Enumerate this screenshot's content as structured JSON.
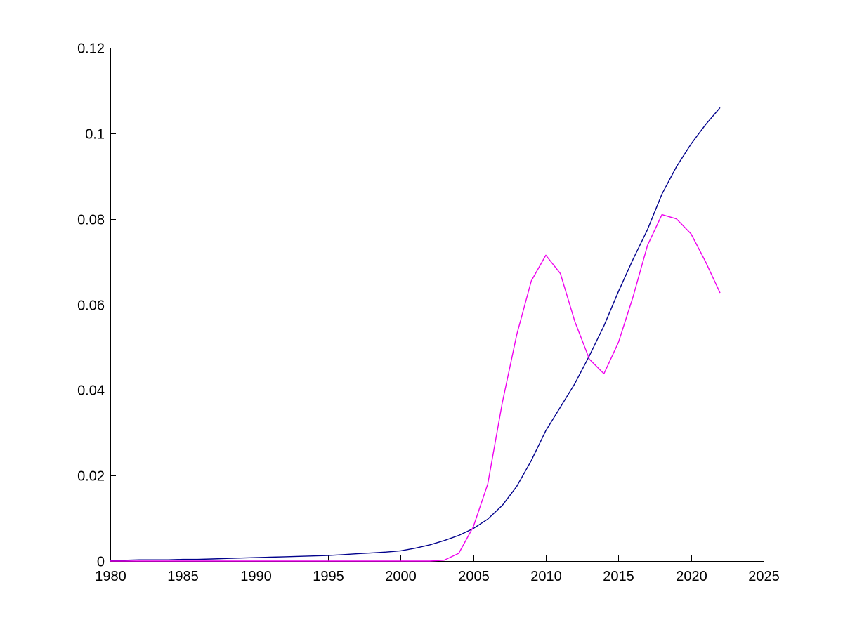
{
  "figure": {
    "background_color": "#ffffff",
    "axis_color": "#000000",
    "has_title": false,
    "has_legend": false,
    "has_grid": false
  },
  "chart_data": {
    "type": "line",
    "title": "",
    "xlabel": "",
    "ylabel": "",
    "xlim": [
      1980,
      2025
    ],
    "ylim": [
      0,
      0.12
    ],
    "grid": false,
    "legend_position": "none",
    "x_ticks": [
      1980,
      1985,
      1990,
      1995,
      2000,
      2005,
      2010,
      2015,
      2020,
      2025
    ],
    "x_tick_labels": [
      "1980",
      "1985",
      "1990",
      "1995",
      "2000",
      "2005",
      "2010",
      "2015",
      "2020",
      "2025"
    ],
    "y_ticks": [
      0,
      0.02,
      0.04,
      0.06,
      0.08,
      0.1,
      0.12
    ],
    "y_tick_labels": [
      "0",
      "0.02",
      "0.04",
      "0.06",
      "0.08",
      "0.1",
      "0.12"
    ],
    "x": [
      1980,
      1981,
      1982,
      1983,
      1984,
      1985,
      1986,
      1987,
      1988,
      1989,
      1990,
      1991,
      1992,
      1993,
      1994,
      1995,
      1996,
      1997,
      1998,
      1999,
      2000,
      2001,
      2002,
      2003,
      2004,
      2005,
      2006,
      2007,
      2008,
      2009,
      2010,
      2011,
      2012,
      2013,
      2014,
      2015,
      2016,
      2017,
      2018,
      2019,
      2020,
      2021,
      2022
    ],
    "series": [
      {
        "name": "smooth-growth-curve",
        "color": "#00008B",
        "line_width": 1.4,
        "values": [
          0.0002,
          0.0002,
          0.0003,
          0.0003,
          0.0003,
          0.0004,
          0.0004,
          0.0005,
          0.0006,
          0.0007,
          0.0008,
          0.0009,
          0.001,
          0.0011,
          0.0012,
          0.0013,
          0.0015,
          0.0017,
          0.0019,
          0.0021,
          0.0024,
          0.003,
          0.0038,
          0.0048,
          0.006,
          0.0076,
          0.0098,
          0.013,
          0.0175,
          0.0235,
          0.0305,
          0.036,
          0.0415,
          0.048,
          0.055,
          0.063,
          0.0705,
          0.0775,
          0.0858,
          0.0922,
          0.0975,
          0.102,
          0.106
        ]
      },
      {
        "name": "volatile-curve",
        "color": "#EE00EE",
        "line_width": 1.4,
        "values": [
          0,
          0,
          0,
          0,
          0,
          0,
          0,
          0,
          0,
          0,
          0,
          0,
          0,
          0,
          0,
          0,
          0,
          0,
          0,
          0,
          0,
          0,
          0,
          0.0002,
          0.0018,
          0.008,
          0.018,
          0.037,
          0.053,
          0.0655,
          0.0715,
          0.0672,
          0.056,
          0.0472,
          0.0438,
          0.0511,
          0.0617,
          0.0738,
          0.081,
          0.08,
          0.0765,
          0.07,
          0.0627
        ]
      }
    ]
  }
}
